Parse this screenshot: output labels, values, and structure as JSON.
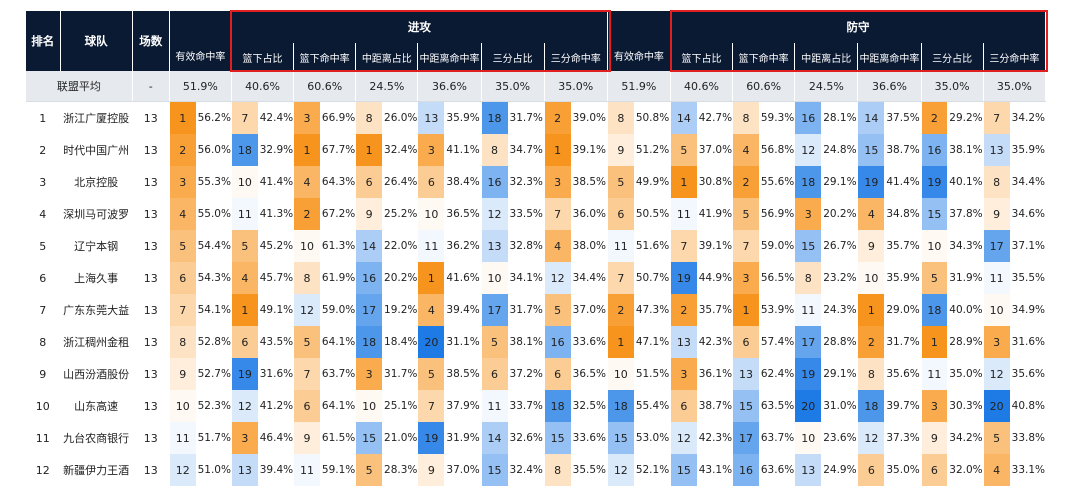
{
  "header": {
    "rank": "排名",
    "team": "球队",
    "games": "场数",
    "offense_group": "进攻",
    "defense_group": "防守",
    "sub_offense": [
      "有效命中率",
      "篮下占比",
      "篮下命中率",
      "中距离占比",
      "中距离命中率",
      "三分占比",
      "三分命中率"
    ],
    "sub_defense": [
      "有效命中率",
      "篮下占比",
      "篮下命中率",
      "中距离占比",
      "中距离命中率",
      "三分占比",
      "三分命中率"
    ]
  },
  "average": {
    "label": "联盟平均",
    "games": "-",
    "values": [
      "51.9%",
      "40.6%",
      "60.6%",
      "24.5%",
      "36.6%",
      "35.0%",
      "35.0%",
      "51.9%",
      "40.6%",
      "60.6%",
      "24.5%",
      "36.6%",
      "35.0%",
      "35.0%"
    ]
  },
  "rows": [
    {
      "rank": "1",
      "team": "浙江广厦控股",
      "games": "13",
      "cells": [
        [
          "1",
          "56.2%"
        ],
        [
          "7",
          "42.4%"
        ],
        [
          "3",
          "66.9%"
        ],
        [
          "8",
          "26.0%"
        ],
        [
          "13",
          "35.9%"
        ],
        [
          "18",
          "31.7%"
        ],
        [
          "2",
          "39.0%"
        ],
        [
          "8",
          "50.8%"
        ],
        [
          "14",
          "42.7%"
        ],
        [
          "8",
          "59.3%"
        ],
        [
          "16",
          "28.1%"
        ],
        [
          "14",
          "37.5%"
        ],
        [
          "2",
          "29.2%"
        ],
        [
          "7",
          "34.2%"
        ]
      ]
    },
    {
      "rank": "2",
      "team": "时代中国广州",
      "games": "13",
      "cells": [
        [
          "2",
          "56.0%"
        ],
        [
          "18",
          "32.9%"
        ],
        [
          "1",
          "67.7%"
        ],
        [
          "1",
          "32.4%"
        ],
        [
          "3",
          "41.1%"
        ],
        [
          "8",
          "34.7%"
        ],
        [
          "1",
          "39.1%"
        ],
        [
          "9",
          "51.2%"
        ],
        [
          "5",
          "37.0%"
        ],
        [
          "4",
          "56.8%"
        ],
        [
          "12",
          "24.8%"
        ],
        [
          "15",
          "38.7%"
        ],
        [
          "16",
          "38.1%"
        ],
        [
          "13",
          "35.9%"
        ]
      ]
    },
    {
      "rank": "3",
      "team": "北京控股",
      "games": "13",
      "cells": [
        [
          "3",
          "55.3%"
        ],
        [
          "10",
          "41.4%"
        ],
        [
          "4",
          "64.3%"
        ],
        [
          "6",
          "26.4%"
        ],
        [
          "6",
          "38.4%"
        ],
        [
          "16",
          "32.3%"
        ],
        [
          "3",
          "38.5%"
        ],
        [
          "5",
          "49.9%"
        ],
        [
          "1",
          "30.8%"
        ],
        [
          "2",
          "55.6%"
        ],
        [
          "18",
          "29.1%"
        ],
        [
          "19",
          "41.4%"
        ],
        [
          "19",
          "40.1%"
        ],
        [
          "8",
          "34.4%"
        ]
      ]
    },
    {
      "rank": "4",
      "team": "深圳马可波罗",
      "games": "13",
      "cells": [
        [
          "4",
          "55.0%"
        ],
        [
          "11",
          "41.3%"
        ],
        [
          "2",
          "67.2%"
        ],
        [
          "9",
          "25.2%"
        ],
        [
          "10",
          "36.5%"
        ],
        [
          "12",
          "33.5%"
        ],
        [
          "7",
          "36.0%"
        ],
        [
          "6",
          "50.5%"
        ],
        [
          "11",
          "41.9%"
        ],
        [
          "5",
          "56.9%"
        ],
        [
          "3",
          "20.2%"
        ],
        [
          "4",
          "34.8%"
        ],
        [
          "15",
          "37.8%"
        ],
        [
          "9",
          "34.6%"
        ]
      ]
    },
    {
      "rank": "5",
      "team": "辽宁本钢",
      "games": "13",
      "cells": [
        [
          "5",
          "54.4%"
        ],
        [
          "5",
          "45.2%"
        ],
        [
          "10",
          "61.3%"
        ],
        [
          "14",
          "22.0%"
        ],
        [
          "11",
          "36.2%"
        ],
        [
          "13",
          "32.8%"
        ],
        [
          "4",
          "38.0%"
        ],
        [
          "11",
          "51.6%"
        ],
        [
          "7",
          "39.1%"
        ],
        [
          "7",
          "59.0%"
        ],
        [
          "15",
          "26.7%"
        ],
        [
          "9",
          "35.7%"
        ],
        [
          "10",
          "34.3%"
        ],
        [
          "17",
          "37.1%"
        ]
      ]
    },
    {
      "rank": "6",
      "team": "上海久事",
      "games": "13",
      "cells": [
        [
          "6",
          "54.3%"
        ],
        [
          "4",
          "45.7%"
        ],
        [
          "8",
          "61.9%"
        ],
        [
          "16",
          "20.2%"
        ],
        [
          "1",
          "41.6%"
        ],
        [
          "10",
          "34.1%"
        ],
        [
          "12",
          "34.4%"
        ],
        [
          "7",
          "50.7%"
        ],
        [
          "19",
          "44.9%"
        ],
        [
          "3",
          "56.5%"
        ],
        [
          "8",
          "23.2%"
        ],
        [
          "10",
          "35.9%"
        ],
        [
          "5",
          "31.9%"
        ],
        [
          "11",
          "35.5%"
        ]
      ]
    },
    {
      "rank": "7",
      "team": "广东东莞大益",
      "games": "13",
      "cells": [
        [
          "7",
          "54.1%"
        ],
        [
          "1",
          "49.1%"
        ],
        [
          "12",
          "59.0%"
        ],
        [
          "17",
          "19.2%"
        ],
        [
          "4",
          "39.4%"
        ],
        [
          "17",
          "31.7%"
        ],
        [
          "5",
          "37.0%"
        ],
        [
          "2",
          "47.3%"
        ],
        [
          "2",
          "35.7%"
        ],
        [
          "1",
          "53.9%"
        ],
        [
          "11",
          "24.3%"
        ],
        [
          "1",
          "29.0%"
        ],
        [
          "18",
          "40.0%"
        ],
        [
          "10",
          "34.9%"
        ]
      ]
    },
    {
      "rank": "8",
      "team": "浙江稠州金租",
      "games": "13",
      "cells": [
        [
          "8",
          "52.8%"
        ],
        [
          "6",
          "43.5%"
        ],
        [
          "5",
          "64.1%"
        ],
        [
          "18",
          "18.4%"
        ],
        [
          "20",
          "31.1%"
        ],
        [
          "5",
          "38.1%"
        ],
        [
          "16",
          "33.6%"
        ],
        [
          "1",
          "47.1%"
        ],
        [
          "13",
          "42.3%"
        ],
        [
          "6",
          "57.4%"
        ],
        [
          "17",
          "28.8%"
        ],
        [
          "2",
          "31.7%"
        ],
        [
          "1",
          "28.9%"
        ],
        [
          "3",
          "31.6%"
        ]
      ]
    },
    {
      "rank": "9",
      "team": "山西汾酒股份",
      "games": "13",
      "cells": [
        [
          "9",
          "52.7%"
        ],
        [
          "19",
          "31.6%"
        ],
        [
          "7",
          "63.7%"
        ],
        [
          "3",
          "31.7%"
        ],
        [
          "5",
          "38.5%"
        ],
        [
          "6",
          "37.2%"
        ],
        [
          "6",
          "36.5%"
        ],
        [
          "10",
          "51.5%"
        ],
        [
          "3",
          "36.1%"
        ],
        [
          "13",
          "62.4%"
        ],
        [
          "19",
          "29.1%"
        ],
        [
          "8",
          "35.6%"
        ],
        [
          "11",
          "35.0%"
        ],
        [
          "12",
          "35.6%"
        ]
      ]
    },
    {
      "rank": "10",
      "team": "山东高速",
      "games": "13",
      "cells": [
        [
          "10",
          "52.3%"
        ],
        [
          "12",
          "41.2%"
        ],
        [
          "6",
          "64.1%"
        ],
        [
          "10",
          "25.1%"
        ],
        [
          "7",
          "37.9%"
        ],
        [
          "11",
          "33.7%"
        ],
        [
          "18",
          "32.5%"
        ],
        [
          "18",
          "55.4%"
        ],
        [
          "6",
          "38.7%"
        ],
        [
          "15",
          "63.5%"
        ],
        [
          "20",
          "31.0%"
        ],
        [
          "18",
          "39.7%"
        ],
        [
          "3",
          "30.3%"
        ],
        [
          "20",
          "40.8%"
        ]
      ]
    },
    {
      "rank": "11",
      "team": "九台农商银行",
      "games": "13",
      "cells": [
        [
          "11",
          "51.7%"
        ],
        [
          "3",
          "46.4%"
        ],
        [
          "9",
          "61.5%"
        ],
        [
          "15",
          "21.0%"
        ],
        [
          "19",
          "31.9%"
        ],
        [
          "14",
          "32.6%"
        ],
        [
          "15",
          "33.6%"
        ],
        [
          "15",
          "53.0%"
        ],
        [
          "12",
          "42.3%"
        ],
        [
          "17",
          "63.7%"
        ],
        [
          "10",
          "23.6%"
        ],
        [
          "12",
          "37.3%"
        ],
        [
          "9",
          "34.2%"
        ],
        [
          "5",
          "33.8%"
        ]
      ]
    },
    {
      "rank": "12",
      "team": "新疆伊力王酒",
      "games": "13",
      "cells": [
        [
          "12",
          "51.0%"
        ],
        [
          "13",
          "39.4%"
        ],
        [
          "11",
          "59.1%"
        ],
        [
          "5",
          "28.3%"
        ],
        [
          "9",
          "37.0%"
        ],
        [
          "15",
          "32.4%"
        ],
        [
          "8",
          "35.5%"
        ],
        [
          "12",
          "52.1%"
        ],
        [
          "15",
          "43.1%"
        ],
        [
          "16",
          "63.6%"
        ],
        [
          "13",
          "24.9%"
        ],
        [
          "6",
          "35.0%"
        ],
        [
          "6",
          "32.0%"
        ],
        [
          "4",
          "33.1%"
        ]
      ]
    }
  ],
  "colors": {
    "header_bg": "#0b1a33",
    "highlight_border": "#e02020",
    "best_rank": "#f7941d",
    "worst_rank": "#1e7be6",
    "avg_row_bg": "#e6eaef"
  }
}
